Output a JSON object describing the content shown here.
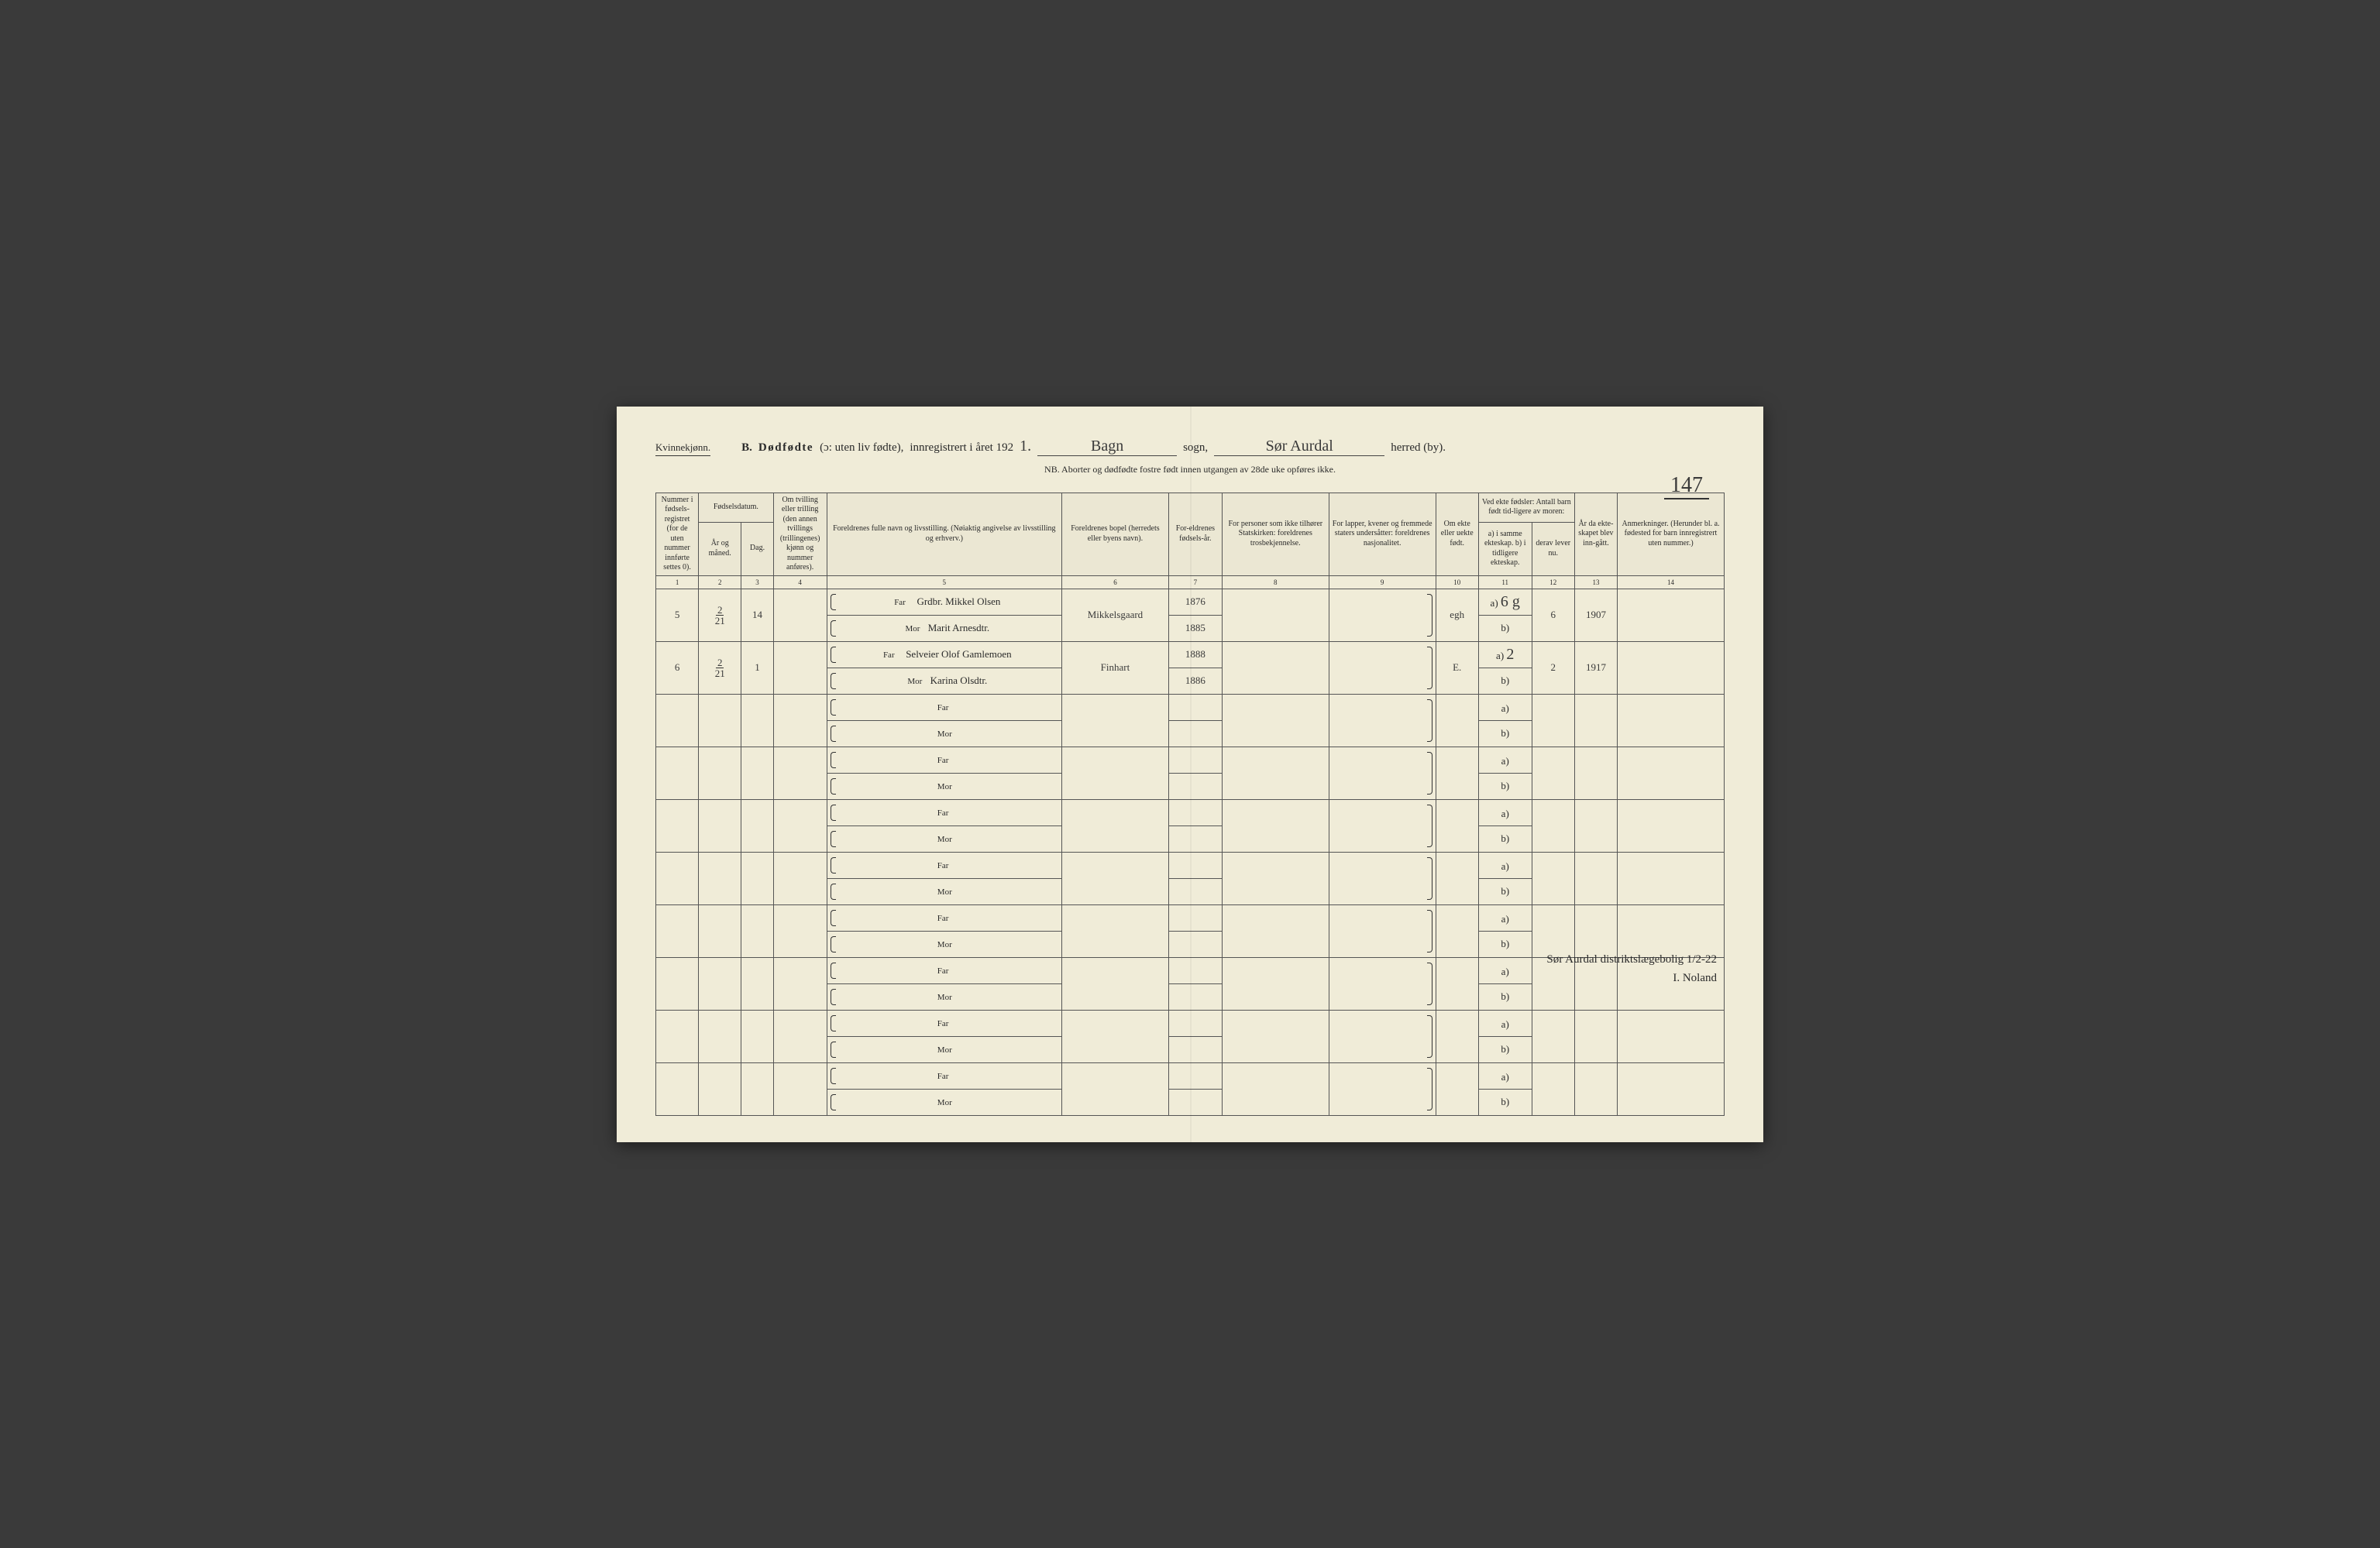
{
  "header": {
    "gender": "Kvinnekjønn.",
    "section_letter": "B.",
    "section_title": "Dødfødte",
    "section_paren": "(ɔ: uten liv fødte),",
    "registered_prefix": "innregistrert i året 192",
    "year_suffix": "1.",
    "sogn_value": "Bagn",
    "sogn_label": "sogn,",
    "herred_value": "Sør Aurdal",
    "herred_label": "herred (by).",
    "nb": "NB.  Aborter og dødfødte fostre født innen utgangen av 28de uke opføres ikke.",
    "page_number": "147"
  },
  "columns": {
    "c1": "Nummer i fødsels-registret (for de uten nummer innførte settes 0).",
    "c2_group": "Fødselsdatum.",
    "c2": "År og måned.",
    "c3": "Dag.",
    "c4": "Om tvilling eller trilling (den annen tvillings (trillingenes) kjønn og nummer anføres).",
    "c5": "Foreldrenes fulle navn og livsstilling. (Nøiaktig angivelse av livsstilling og erhverv.)",
    "c6": "Foreldrenes bopel (herredets eller byens navn).",
    "c7": "For-eldrenes fødsels-år.",
    "c8": "For personer som ikke tilhører Statskirken: foreldrenes trosbekjennelse.",
    "c9": "For lapper, kvener og fremmede staters undersåtter: foreldrenes nasjonalitet.",
    "c10": "Om ekte eller uekte født.",
    "c11_group": "Ved ekte fødsler: Antall barn født tid-ligere av moren:",
    "c11": "a) i samme ekteskap.  b) i tidligere ekteskap.",
    "c12": "derav lever nu.",
    "c13": "År da ekte-skapet blev inn-gått.",
    "c14": "Anmerkninger. (Herunder bl. a. fødested for barn innregistrert uten nummer.)"
  },
  "colnums": [
    "1",
    "2",
    "3",
    "4",
    "5",
    "6",
    "7",
    "8",
    "9",
    "10",
    "11",
    "12",
    "13",
    "14"
  ],
  "parent_labels": {
    "far": "Far",
    "mor": "Mor"
  },
  "ab_labels": {
    "a": "a)",
    "b": "b)"
  },
  "rows": [
    {
      "num": "5",
      "month": "2",
      "year": "21",
      "day": "14",
      "far": "Grdbr. Mikkel Olsen",
      "mor": "Marit Arnesdtr.",
      "bopel": "Mikkelsgaard",
      "far_year": "1876",
      "mor_year": "1885",
      "ekte": "egh",
      "a": "6 g",
      "lever": "6",
      "marriage": "1907"
    },
    {
      "num": "6",
      "month": "2",
      "year": "21",
      "day": "1",
      "far": "Selveier Olof Gamlemoen",
      "mor": "Karina Olsdtr.",
      "bopel": "Finhart",
      "far_year": "1888",
      "mor_year": "1886",
      "ekte": "E.",
      "a": "2",
      "lever": "2",
      "marriage": "1917"
    },
    {},
    {},
    {},
    {},
    {},
    {},
    {},
    {}
  ],
  "signature": {
    "line1": "Sør Aurdal distriktslægebolig 1/2-22",
    "line2": "I. Noland"
  }
}
